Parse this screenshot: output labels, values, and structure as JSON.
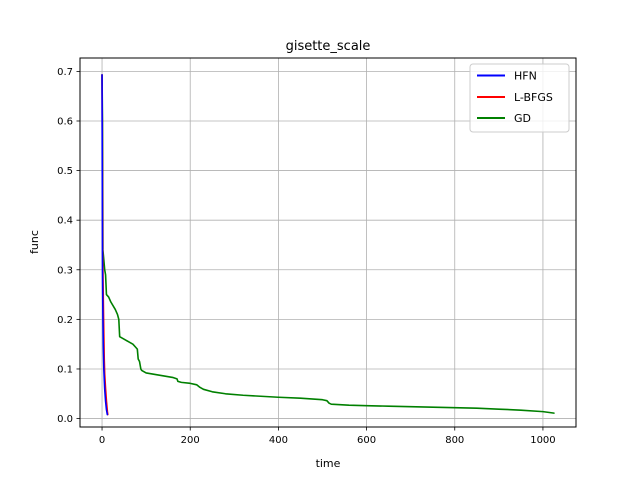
{
  "chart_data": {
    "type": "line",
    "title": "gisette_scale",
    "xlabel": "time",
    "ylabel": "func",
    "xlim": [
      -50,
      1075
    ],
    "ylim": [
      -0.017,
      0.727
    ],
    "xticks": [
      0,
      200,
      400,
      600,
      800,
      1000
    ],
    "yticks": [
      0.0,
      0.1,
      0.2,
      0.3,
      0.4,
      0.5,
      0.6,
      0.7
    ],
    "grid": true,
    "legend_position": "top-right",
    "series": [
      {
        "name": "HFN",
        "color": "#0000ff",
        "x": [
          0,
          1,
          2,
          3,
          4,
          6,
          8,
          10,
          12
        ],
        "y": [
          0.693,
          0.3,
          0.2,
          0.14,
          0.1,
          0.06,
          0.035,
          0.018,
          0.008
        ]
      },
      {
        "name": "L-BFGS",
        "color": "#ff0000",
        "x": [
          0,
          0.5,
          1,
          1.5,
          2,
          3,
          4,
          5,
          6,
          8,
          10,
          12,
          13
        ],
        "y": [
          0.693,
          0.6,
          0.45,
          0.33,
          0.3,
          0.23,
          0.17,
          0.12,
          0.09,
          0.06,
          0.035,
          0.015,
          0.008
        ]
      },
      {
        "name": "GD",
        "color": "#008000",
        "x": [
          0,
          1,
          2,
          3,
          4,
          5,
          6,
          8,
          10,
          15,
          20,
          30,
          35,
          38,
          40,
          50,
          60,
          70,
          75,
          80,
          82,
          85,
          88,
          90,
          100,
          120,
          140,
          160,
          170,
          172,
          180,
          200,
          215,
          222,
          230,
          250,
          280,
          320,
          360,
          400,
          450,
          500,
          510,
          515,
          520,
          540,
          560,
          600,
          650,
          700,
          750,
          800,
          850,
          900,
          950,
          1000,
          1025
        ],
        "y": [
          0.693,
          0.6,
          0.34,
          0.33,
          0.32,
          0.31,
          0.3,
          0.29,
          0.25,
          0.245,
          0.235,
          0.22,
          0.21,
          0.2,
          0.165,
          0.16,
          0.155,
          0.15,
          0.145,
          0.14,
          0.12,
          0.115,
          0.1,
          0.097,
          0.092,
          0.089,
          0.086,
          0.083,
          0.08,
          0.075,
          0.073,
          0.071,
          0.068,
          0.063,
          0.059,
          0.054,
          0.05,
          0.047,
          0.045,
          0.043,
          0.041,
          0.038,
          0.036,
          0.031,
          0.029,
          0.028,
          0.027,
          0.026,
          0.025,
          0.024,
          0.023,
          0.022,
          0.021,
          0.019,
          0.017,
          0.014,
          0.011
        ]
      }
    ]
  }
}
